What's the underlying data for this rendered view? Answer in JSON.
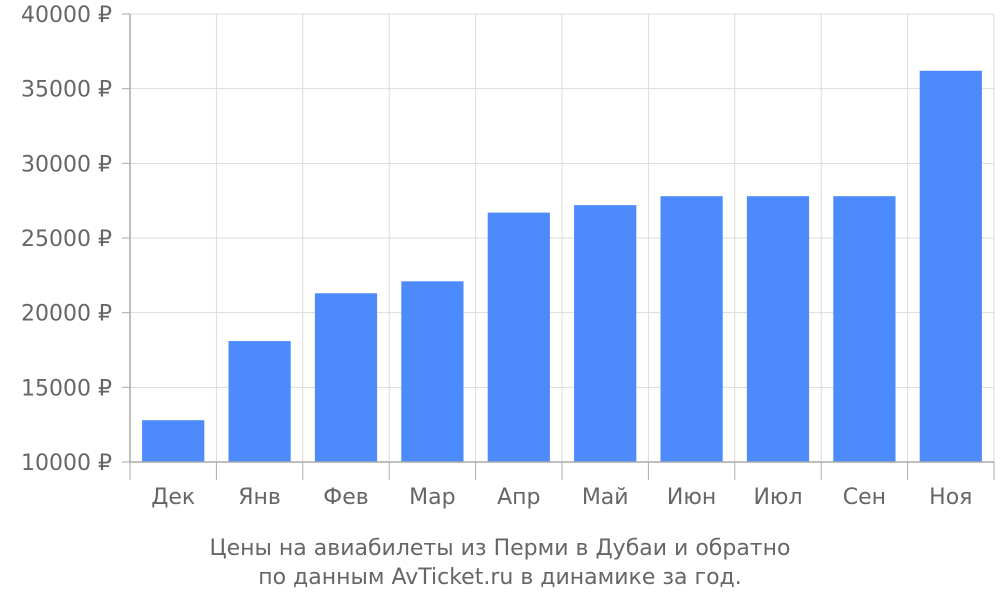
{
  "chart_data": {
    "type": "bar",
    "title": "Цены на авиабилеты из Перми в Дубаи и обратно",
    "subtitle": "по данным AvTicket.ru в динамике за год.",
    "xlabel": "",
    "ylabel": "",
    "categories": [
      "Дек",
      "Янв",
      "Фев",
      "Мар",
      "Апр",
      "Май",
      "Июн",
      "Июл",
      "Сен",
      "Ноя"
    ],
    "values": [
      12800,
      18100,
      21300,
      22100,
      26700,
      27200,
      27800,
      27800,
      27800,
      36200
    ],
    "ylim": [
      10000,
      40000
    ],
    "yticks": [
      10000,
      15000,
      20000,
      25000,
      30000,
      35000,
      40000
    ],
    "ytick_labels": [
      "10000 ₽",
      "15000 ₽",
      "20000 ₽",
      "25000 ₽",
      "30000 ₽",
      "35000 ₽",
      "40000 ₽"
    ],
    "grid": true,
    "legend": "none",
    "bar_color": "#4d8afb",
    "grid_color": "#dddddd",
    "axis_color": "#aaaaaa",
    "text_color": "#666666"
  }
}
